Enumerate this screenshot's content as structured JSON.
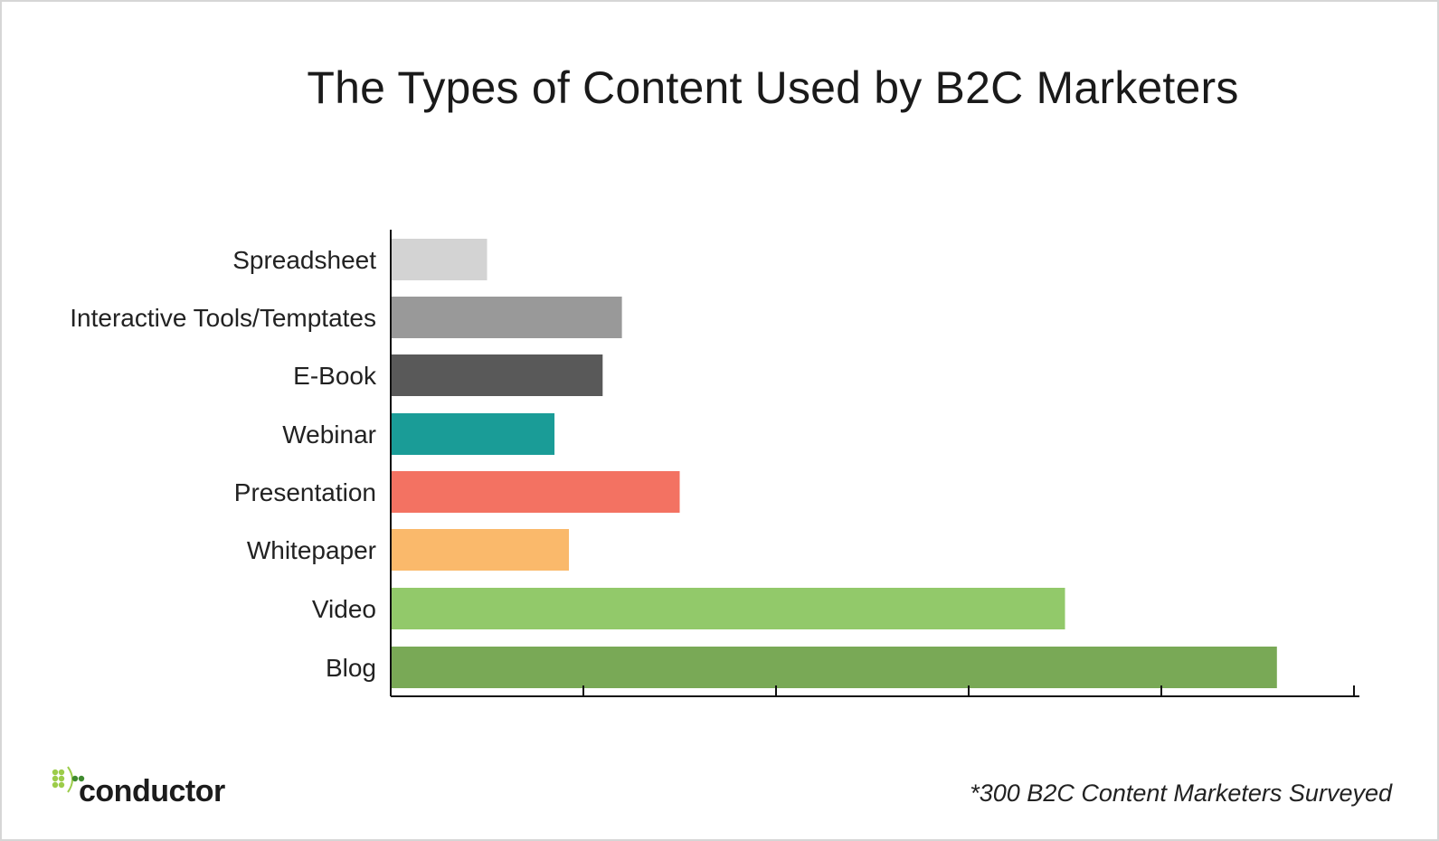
{
  "chart_data": {
    "type": "bar",
    "orientation": "horizontal",
    "title": "The Types of Content Used by B2C Marketers",
    "categories": [
      "Spreadsheet",
      "Interactive Tools/Temptates",
      "E-Book",
      "Webinar",
      "Presentation",
      "Whitepaper",
      "Video",
      "Blog"
    ],
    "values": [
      10,
      24,
      22,
      17,
      30,
      18.5,
      70,
      92
    ],
    "colors": [
      "#d3d3d3",
      "#999999",
      "#595959",
      "#1a9c97",
      "#f37262",
      "#fab96b",
      "#92c96a",
      "#79a956"
    ],
    "xlim": [
      0,
      100
    ],
    "x_ticks": [
      0,
      20,
      40,
      60,
      80,
      100
    ],
    "tick_labels_shown": false,
    "grid": false,
    "legend": "none"
  },
  "footnote": "*300 B2C Content Marketers Surveyed",
  "logo": {
    "text": "conductor",
    "icon": "conductor-dots-logo",
    "color_light": "#9ccc4a",
    "color_dark": "#3e8a2e"
  }
}
